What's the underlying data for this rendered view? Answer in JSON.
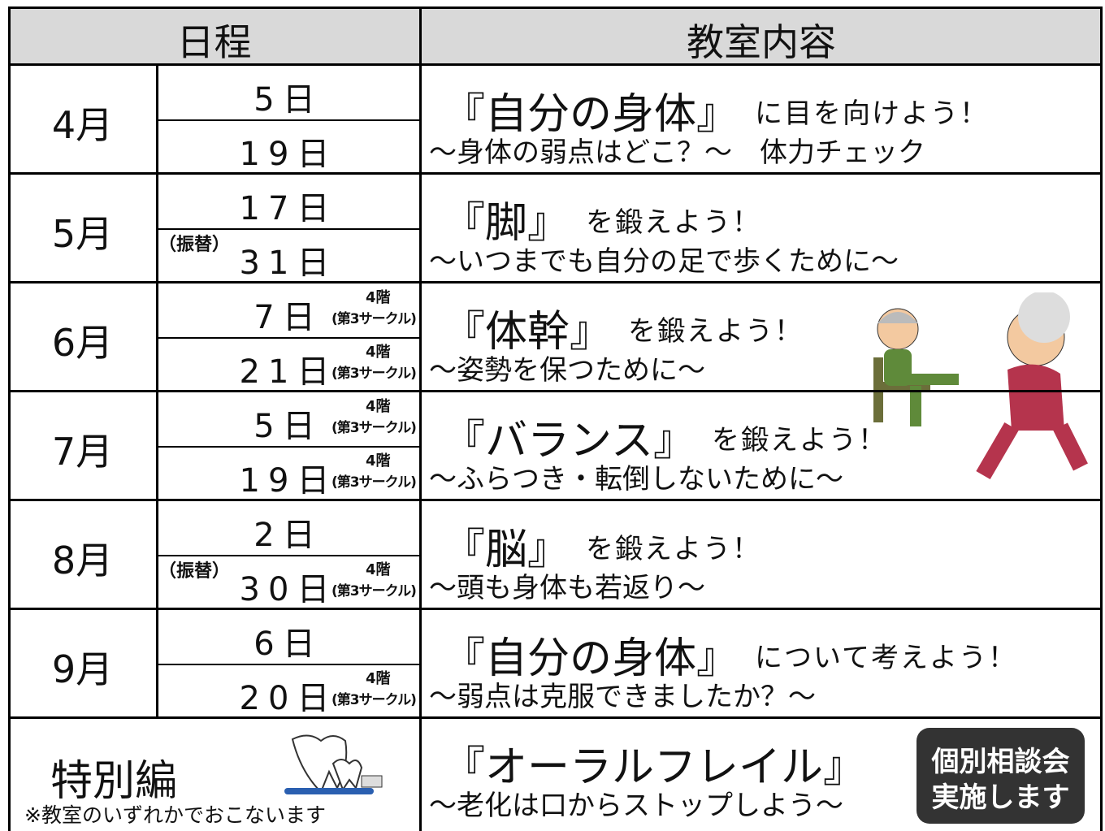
{
  "header": {
    "schedule": "日程",
    "content": "教室内容"
  },
  "months": [
    {
      "month": "4月",
      "dates": [
        {
          "date": "5日"
        },
        {
          "date": "19日"
        }
      ],
      "title": "『自分の身体』",
      "tagline": "に目を向けよう！",
      "subtitle": "～身体の弱点はどこ？～　体力チェック"
    },
    {
      "month": "5月",
      "dates": [
        {
          "date": "17日"
        },
        {
          "prefix": "（振替）",
          "date": "31日"
        }
      ],
      "title": "『脚』",
      "tagline": "を鍛えよう！",
      "subtitle": "～いつまでも自分の足で歩くために～"
    },
    {
      "month": "6月",
      "dates": [
        {
          "date": "7日",
          "floor": "4階",
          "venue": "(第3サークル)"
        },
        {
          "date": "21日",
          "floor": "4階",
          "venue": "(第3サークル)"
        }
      ],
      "title": "『体幹』",
      "tagline": "を鍛えよう！",
      "subtitle": "～姿勢を保つために～"
    },
    {
      "month": "7月",
      "dates": [
        {
          "date": "5日",
          "floor": "4階",
          "venue": "(第3サークル)"
        },
        {
          "date": "19日",
          "floor": "4階",
          "venue": "(第3サークル)"
        }
      ],
      "title": "『バランス』",
      "tagline": "を鍛えよう！",
      "subtitle": "～ふらつき・転倒しないために～"
    },
    {
      "month": "8月",
      "dates": [
        {
          "date": "2日"
        },
        {
          "prefix": "（振替）",
          "date": "30日",
          "floor": "4階",
          "venue": "(第3サークル)"
        }
      ],
      "title": "『脳』",
      "tagline": "を鍛えよう！",
      "subtitle": "～頭も身体も若返り～"
    },
    {
      "month": "9月",
      "dates": [
        {
          "date": "6日"
        },
        {
          "date": "20日",
          "floor": "4階",
          "venue": "(第3サークル)"
        }
      ],
      "title": "『自分の身体』",
      "tagline": "について考えよう！",
      "subtitle": "～弱点は克服できましたか？～"
    }
  ],
  "special": {
    "label": "特別編",
    "note": "※教室のいずれかでおこないます",
    "title": "『オーラルフレイル』",
    "subtitle": "～老化は口からストップしよう～",
    "badge": [
      "個別相談会",
      "実施します"
    ]
  }
}
